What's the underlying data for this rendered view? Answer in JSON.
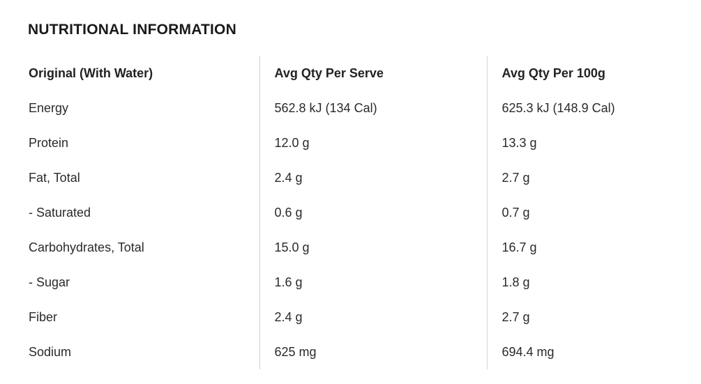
{
  "section": {
    "title": "NUTRITIONAL INFORMATION"
  },
  "table": {
    "headers": [
      "Original (With Water)",
      "Avg Qty Per Serve",
      "Avg Qty Per 100g"
    ],
    "rows": [
      [
        "Energy",
        "562.8 kJ (134 Cal)",
        "625.3 kJ (148.9 Cal)"
      ],
      [
        "Protein",
        "12.0 g",
        "13.3 g"
      ],
      [
        "Fat, Total",
        "2.4 g",
        "2.7 g"
      ],
      [
        "- Saturated",
        "0.6 g",
        "0.7 g"
      ],
      [
        "Carbohydrates, Total",
        "15.0 g",
        "16.7 g"
      ],
      [
        "- Sugar",
        "1.6 g",
        "1.8 g"
      ],
      [
        "Fiber",
        "2.4 g",
        "2.7 g"
      ],
      [
        "Sodium",
        "625 mg",
        "694.4 mg"
      ]
    ]
  }
}
